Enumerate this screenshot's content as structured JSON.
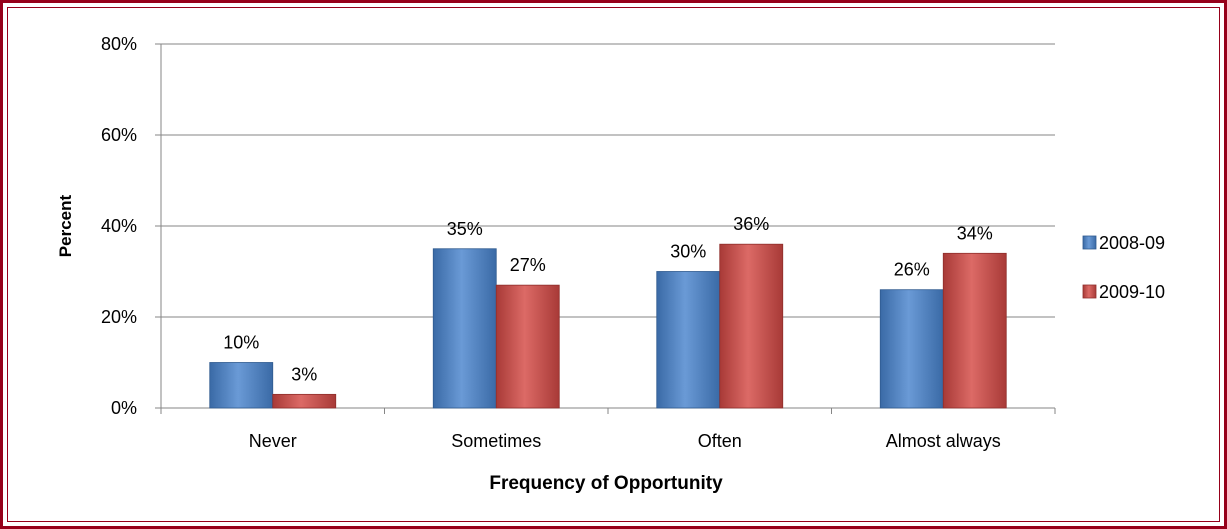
{
  "chart_data": {
    "type": "bar",
    "title": "",
    "xlabel": "Frequency of Opportunity",
    "ylabel": "Percent",
    "categories": [
      "Never",
      "Sometimes",
      "Often",
      "Almost always"
    ],
    "series": [
      {
        "name": "2008-09",
        "values": [
          10,
          35,
          30,
          26
        ],
        "labels": [
          "10%",
          "35%",
          "30%",
          "26%"
        ],
        "color": "#4f81bd"
      },
      {
        "name": "2009-10",
        "values": [
          3,
          27,
          36,
          34
        ],
        "labels": [
          "3%",
          "27%",
          "36%",
          "34%"
        ],
        "color": "#c0504d"
      }
    ],
    "ylim": [
      0,
      80
    ],
    "yticks": [
      0,
      20,
      40,
      60,
      80
    ],
    "ytick_labels": [
      "0%",
      "20%",
      "40%",
      "60%",
      "80%"
    ],
    "grid": true,
    "legend_position": "right"
  }
}
